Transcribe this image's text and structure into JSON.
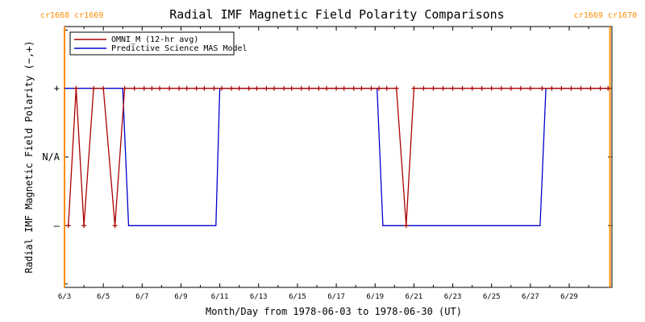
{
  "chart_data": {
    "type": "line",
    "title": "Radial IMF Magnetic Field Polarity Comparisons",
    "xlabel": "Month/Day from 1978-06-03 to 1978-06-30 (UT)",
    "ylabel": "Radial IMF Magnetic Field Polarity (−,+)",
    "x_unit": "days",
    "xlim": [
      0,
      28.2
    ],
    "y_ticks": [
      {
        "value": 1,
        "label": "+"
      },
      {
        "value": 0,
        "label": "N/A"
      },
      {
        "value": -1,
        "label": "–"
      }
    ],
    "ylim": [
      -1.9,
      1.9
    ],
    "x_ticks": [
      {
        "value": 0,
        "label": "6/3"
      },
      {
        "value": 2,
        "label": "6/5"
      },
      {
        "value": 4,
        "label": "6/7"
      },
      {
        "value": 6,
        "label": "6/9"
      },
      {
        "value": 8,
        "label": "6/11"
      },
      {
        "value": 10,
        "label": "6/13"
      },
      {
        "value": 12,
        "label": "6/15"
      },
      {
        "value": 14,
        "label": "6/17"
      },
      {
        "value": 16,
        "label": "6/19"
      },
      {
        "value": 18,
        "label": "6/21"
      },
      {
        "value": 20,
        "label": "6/23"
      },
      {
        "value": 22,
        "label": "6/25"
      },
      {
        "value": 24,
        "label": "6/27"
      },
      {
        "value": 26,
        "label": "6/29"
      }
    ],
    "carrington_markers": [
      {
        "x": 0,
        "label": "cr1668 cr1669",
        "side": "left"
      },
      {
        "x": 28.1,
        "label": "cr1669 cr1670",
        "side": "right"
      }
    ],
    "series": [
      {
        "name": "OMNI_M (12-hr avg)",
        "color": "#aa0000",
        "marker": "+",
        "x": [
          0.2,
          0.6,
          1.0,
          1.5,
          2.0,
          2.6,
          3.1,
          3.6,
          4.1,
          4.5,
          4.9,
          5.4,
          5.9,
          6.3,
          6.8,
          7.2,
          7.7,
          8.1,
          8.6,
          9.0,
          9.5,
          9.9,
          10.4,
          10.8,
          11.3,
          11.7,
          12.2,
          12.6,
          13.1,
          13.5,
          14.0,
          14.4,
          14.9,
          15.3,
          15.8,
          16.2,
          16.6,
          17.1,
          17.6,
          18.0,
          18.5,
          19.0,
          19.5,
          20.0,
          20.5,
          21.0,
          21.5,
          22.0,
          22.5,
          23.0,
          23.5,
          24.0,
          24.6,
          25.1,
          25.6,
          26.1,
          26.6,
          27.1,
          27.6,
          28.0
        ],
        "y": [
          -1,
          1,
          -1,
          1,
          1,
          -1,
          1,
          1,
          1,
          1,
          1,
          1,
          1,
          1,
          1,
          1,
          1,
          1,
          1,
          1,
          1,
          1,
          1,
          1,
          1,
          1,
          1,
          1,
          1,
          1,
          1,
          1,
          1,
          1,
          1,
          1,
          1,
          1,
          -1,
          1,
          1,
          1,
          1,
          1,
          1,
          1,
          1,
          1,
          1,
          1,
          1,
          1,
          1,
          1,
          1,
          1,
          1,
          1,
          1,
          1
        ]
      },
      {
        "name": "Predictive Science MAS Model",
        "color": "#0000cc",
        "x": [
          0.0,
          3.0,
          3.3,
          7.8,
          8.0,
          16.1,
          16.4,
          24.5,
          24.8,
          28.1
        ],
        "y": [
          1,
          1,
          -1,
          -1,
          1,
          1,
          -1,
          -1,
          1,
          1
        ]
      }
    ],
    "legend": {
      "placement": "top-left",
      "frame": true
    },
    "grid": false
  }
}
